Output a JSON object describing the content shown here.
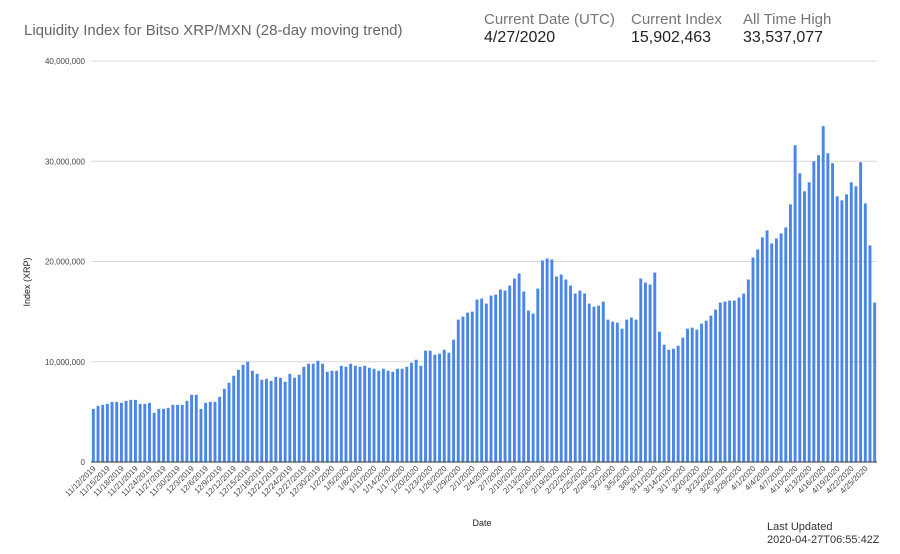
{
  "header": {
    "title": "Liquidity Index for Bitso XRP/MXN (28-day moving trend)",
    "stats": [
      {
        "label": "Current Date (UTC)",
        "value": "4/27/2020"
      },
      {
        "label": "Current Index",
        "value": "15,902,463"
      },
      {
        "label": "All Time High",
        "value": "33,537,077"
      }
    ]
  },
  "footer": {
    "last_updated_label": "Last Updated",
    "last_updated_value": "2020-04-27T06:55:42Z"
  },
  "chart_data": {
    "type": "bar",
    "title": "Liquidity Index for Bitso XRP/MXN (28-day moving trend)",
    "xlabel": "Date",
    "ylabel": "Index (XRP)",
    "ylim": [
      0,
      40000000
    ],
    "y_ticks": [
      0,
      10000000,
      20000000,
      30000000,
      40000000
    ],
    "y_tick_labels": [
      "0",
      "10,000,000",
      "20,000,000",
      "30,000,000",
      "40,000,000"
    ],
    "grid": true,
    "bar_color": "#4a86e8",
    "x_tick_labels": [
      "11/12/2019",
      "11/15/2019",
      "11/18/2019",
      "11/21/2019",
      "11/24/2019",
      "11/27/2019",
      "11/30/2019",
      "12/3/2019",
      "12/6/2019",
      "12/9/2019",
      "12/12/2019",
      "12/15/2019",
      "12/18/2019",
      "12/21/2019",
      "12/24/2019",
      "12/27/2019",
      "12/30/2019",
      "1/2/2020",
      "1/5/2020",
      "1/8/2020",
      "1/11/2020",
      "1/14/2020",
      "1/17/2020",
      "1/20/2020",
      "1/23/2020",
      "1/26/2020",
      "1/29/2020",
      "2/1/2020",
      "2/4/2020",
      "2/7/2020",
      "2/10/2020",
      "2/13/2020",
      "2/16/2020",
      "2/19/2020",
      "2/22/2020",
      "2/25/2020",
      "2/28/2020",
      "3/2/2020",
      "3/5/2020",
      "3/8/2020",
      "3/11/2020",
      "3/14/2020",
      "3/17/2020",
      "3/20/2020",
      "3/23/2020",
      "3/26/2020",
      "3/29/2020",
      "4/1/2020",
      "4/4/2020",
      "4/7/2020",
      "4/10/2020",
      "4/13/2020",
      "4/16/2020",
      "4/19/2020",
      "4/22/2020",
      "4/25/2020"
    ],
    "values": [
      5300000,
      5600000,
      5700000,
      5800000,
      6000000,
      6000000,
      5900000,
      6100000,
      6200000,
      6200000,
      5800000,
      5800000,
      5900000,
      4900000,
      5300000,
      5300000,
      5400000,
      5700000,
      5700000,
      5700000,
      6100000,
      6700000,
      6700000,
      5300000,
      5900000,
      6000000,
      6000000,
      6500000,
      7300000,
      7900000,
      8600000,
      9200000,
      9700000,
      10000000,
      9100000,
      8800000,
      8200000,
      8300000,
      8100000,
      8500000,
      8400000,
      8000000,
      8800000,
      8400000,
      8700000,
      9500000,
      9800000,
      9800000,
      10100000,
      9800000,
      9000000,
      9100000,
      9100000,
      9600000,
      9500000,
      9800000,
      9600000,
      9500000,
      9600000,
      9400000,
      9300000,
      9100000,
      9300000,
      9100000,
      9000000,
      9300000,
      9300000,
      9500000,
      9900000,
      10200000,
      9600000,
      11100000,
      11100000,
      10700000,
      10800000,
      11200000,
      10900000,
      12200000,
      14200000,
      14500000,
      14900000,
      15000000,
      16200000,
      16300000,
      15800000,
      16600000,
      16700000,
      17200000,
      17100000,
      17600000,
      18300000,
      18800000,
      17000000,
      15100000,
      14800000,
      17300000,
      20100000,
      20300000,
      20200000,
      18500000,
      18700000,
      18200000,
      17600000,
      16800000,
      17100000,
      16800000,
      15800000,
      15500000,
      15600000,
      16000000,
      14200000,
      14000000,
      13900000,
      13300000,
      14200000,
      14400000,
      14200000,
      18300000,
      17900000,
      17700000,
      18900000,
      13000000,
      11700000,
      11200000,
      11300000,
      11600000,
      12400000,
      13300000,
      13400000,
      13200000,
      13800000,
      14100000,
      14600000,
      15200000,
      15900000,
      16000000,
      16100000,
      16100000,
      16400000,
      16800000,
      18200000,
      20400000,
      21200000,
      22400000,
      23100000,
      21800000,
      22300000,
      22800000,
      23400000,
      25700000,
      31600000,
      28800000,
      27000000,
      27900000,
      30000000,
      30600000,
      33500000,
      30800000,
      29800000,
      26500000,
      26100000,
      26700000,
      27900000,
      27500000,
      29900000,
      25800000,
      21600000,
      15900000
    ]
  }
}
